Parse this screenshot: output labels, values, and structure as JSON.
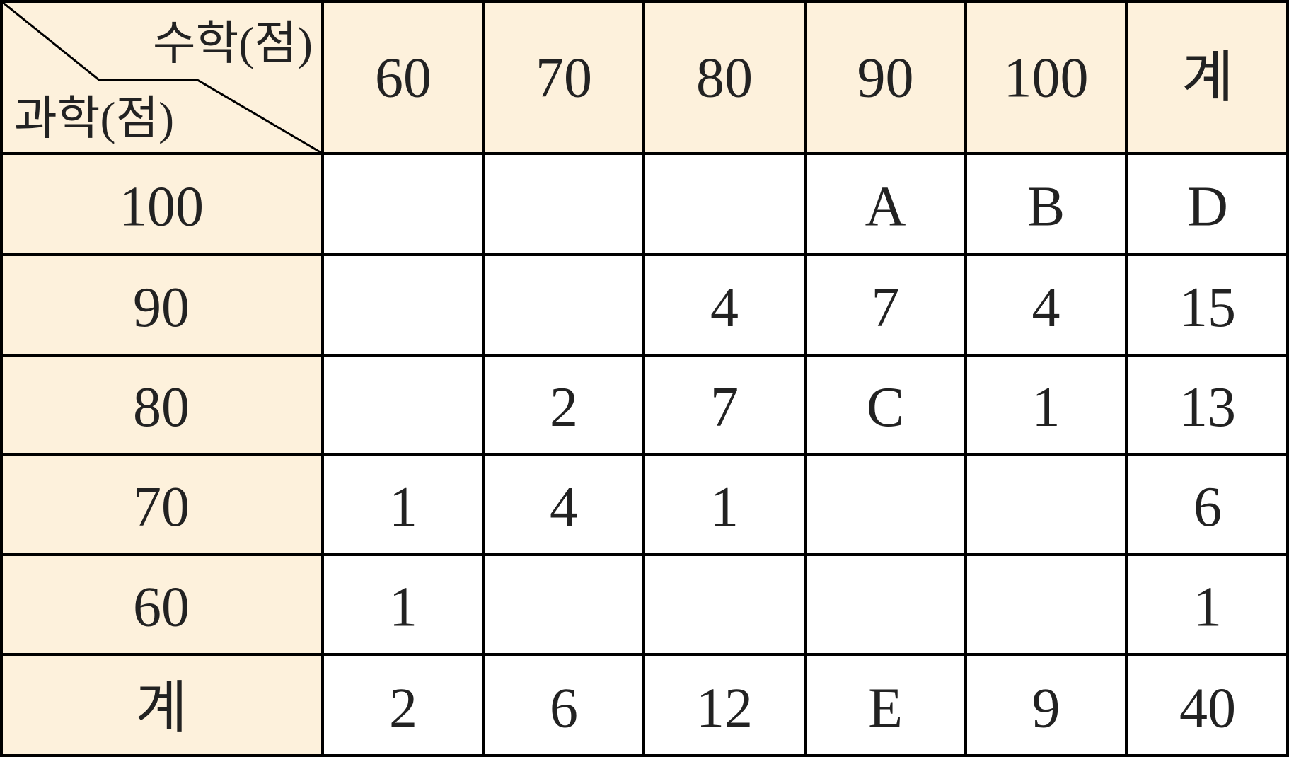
{
  "table": {
    "corner": {
      "top": "수학(점)",
      "bottom": "과학(점)"
    },
    "header": [
      "60",
      "70",
      "80",
      "90",
      "100",
      "계"
    ],
    "rows": [
      [
        "100",
        null,
        null,
        null,
        "A",
        "B",
        "D"
      ],
      [
        "90",
        null,
        null,
        "4",
        "7",
        "4",
        "15"
      ],
      [
        "80",
        null,
        "2",
        "7",
        "C",
        "1",
        "13"
      ],
      [
        "70",
        "1",
        "4",
        "1",
        null,
        null,
        "6"
      ],
      [
        "60",
        "1",
        null,
        null,
        null,
        null,
        "1"
      ],
      [
        "계",
        "2",
        "6",
        "12",
        "E",
        "9",
        "40"
      ]
    ]
  }
}
